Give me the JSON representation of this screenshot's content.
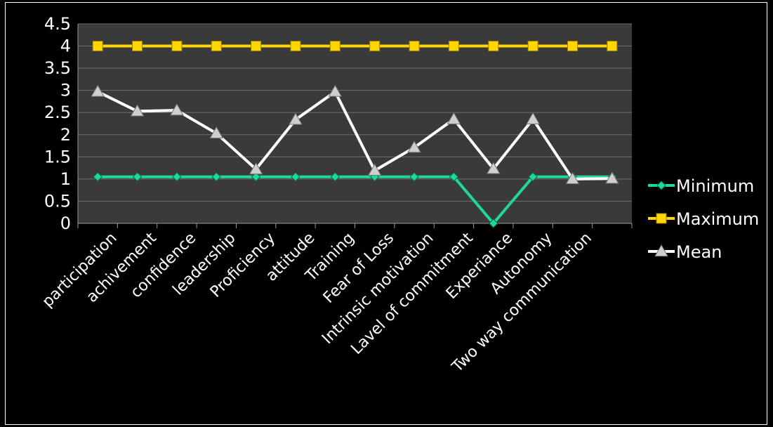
{
  "chart_data": {
    "type": "line",
    "title": "",
    "xlabel": "",
    "ylabel": "",
    "ylim": [
      0,
      4.5
    ],
    "yticks": [
      "0",
      "0.5",
      "1",
      "1.5",
      "2",
      "2.5",
      "3",
      "3.5",
      "4",
      "4.5"
    ],
    "grid": true,
    "legend_position": "right",
    "categories": [
      "participation",
      "achivement",
      "confidence",
      "leadership",
      "Proficiency",
      "attitude",
      "Training",
      "Fear of Loss",
      "Intrinsic motivation",
      "Lavel of commitment",
      "Experiance",
      "Autonomy",
      "Two way communication",
      ""
    ],
    "series": [
      {
        "name": "Minimum",
        "color": "#1fd8a0",
        "marker": "diamond",
        "values": [
          1.05,
          1.05,
          1.05,
          1.05,
          1.05,
          1.05,
          1.05,
          1.05,
          1.05,
          1.05,
          0.0,
          1.05,
          1.05,
          1.05
        ]
      },
      {
        "name": "Maximum",
        "color": "#ffd700",
        "marker": "square",
        "values": [
          4,
          4,
          4,
          4,
          4,
          4,
          4,
          4,
          4,
          4,
          4,
          4,
          4,
          4
        ]
      },
      {
        "name": "Mean",
        "color": "#ffffff",
        "marker": "triangle",
        "values": [
          2.97,
          2.53,
          2.55,
          2.03,
          1.22,
          2.34,
          2.97,
          1.19,
          1.71,
          2.35,
          1.23,
          2.35,
          1.0,
          1.01
        ]
      }
    ],
    "colors": {
      "background": "#000000",
      "plot_area": "#3a3a3a",
      "grid": "#6e6e6e",
      "text": "#ffffff"
    }
  }
}
